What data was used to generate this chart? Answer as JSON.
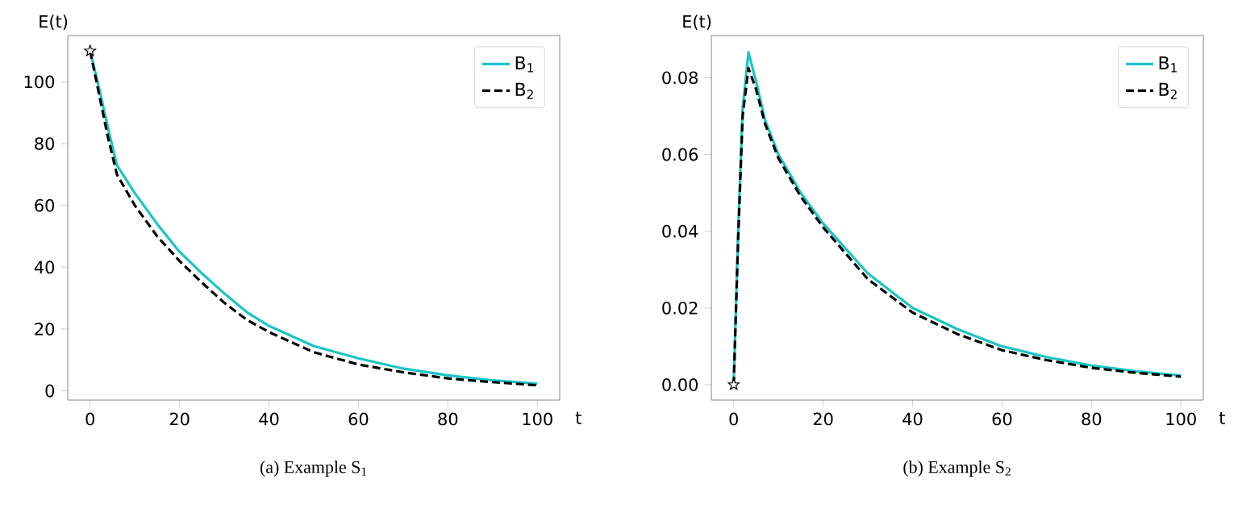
{
  "chart_data": [
    {
      "type": "line",
      "title": "(a) Example S$_{1}$",
      "xlabel": "t",
      "ylabel": "E(t)",
      "xlim": [
        -5,
        105
      ],
      "ylim": [
        -3,
        115
      ],
      "xticks": [
        0,
        20,
        40,
        60,
        80,
        100
      ],
      "yticks": [
        0,
        20,
        40,
        60,
        80,
        100
      ],
      "legend": "top right",
      "grid": false,
      "x": [
        0,
        2,
        4,
        6,
        10,
        15,
        20,
        25,
        30,
        35,
        40,
        50,
        60,
        70,
        80,
        90,
        100
      ],
      "series": [
        {
          "name": "B$_{1}$",
          "color": "#1cc4c4",
          "line_style": "solid",
          "values": [
            110,
            98,
            85,
            73,
            64,
            54,
            45,
            38,
            31.5,
            25.5,
            21,
            14.5,
            10.5,
            7.2,
            5,
            3.4,
            2.3
          ]
        },
        {
          "name": "B$_{2}$",
          "color": "#000000",
          "line_style": "dashed",
          "values": [
            110,
            96,
            82,
            70,
            60,
            50,
            42,
            35,
            28.5,
            23,
            19,
            12.5,
            8.5,
            6,
            4,
            2.8,
            1.8
          ]
        },
        {
          "type": "scatter",
          "marker": "star",
          "color": "#000000",
          "x": [
            0
          ],
          "values": [
            110
          ]
        }
      ]
    },
    {
      "type": "line",
      "title": "(b) Example S$_{2}$",
      "xlabel": "t",
      "ylabel": "E(t)",
      "xlim": [
        -5,
        105
      ],
      "ylim": [
        -0.004,
        0.091
      ],
      "xticks": [
        0,
        20,
        40,
        60,
        80,
        100
      ],
      "yticks": [
        {
          "value": 0,
          "label": "0.00"
        },
        {
          "value": 0.02,
          "label": "0.02"
        },
        {
          "value": 0.04,
          "label": "0.04"
        },
        {
          "value": 0.06,
          "label": "0.06"
        },
        {
          "value": 0.08,
          "label": "0.08"
        }
      ],
      "legend": "top right",
      "grid": false,
      "x": [
        0,
        1,
        2,
        3.3,
        5,
        7,
        10,
        15,
        20,
        30,
        40,
        50,
        60,
        70,
        80,
        90,
        100
      ],
      "series": [
        {
          "name": "B$_{1}$",
          "color": "#1cc4c4",
          "line_style": "solid",
          "values": [
            0,
            0.04,
            0.072,
            0.0866,
            0.079,
            0.069,
            0.06,
            0.05,
            0.042,
            0.029,
            0.02,
            0.0145,
            0.01,
            0.0072,
            0.005,
            0.0035,
            0.0024
          ]
        },
        {
          "name": "B$_{2}$",
          "color": "#000000",
          "line_style": "dashed",
          "values": [
            0,
            0.038,
            0.07,
            0.0825,
            0.077,
            0.068,
            0.059,
            0.049,
            0.041,
            0.0275,
            0.0188,
            0.0132,
            0.009,
            0.0064,
            0.0044,
            0.0031,
            0.0021
          ]
        },
        {
          "type": "scatter",
          "marker": "star",
          "color": "#000000",
          "x": [
            0
          ],
          "values": [
            0
          ]
        }
      ]
    }
  ]
}
